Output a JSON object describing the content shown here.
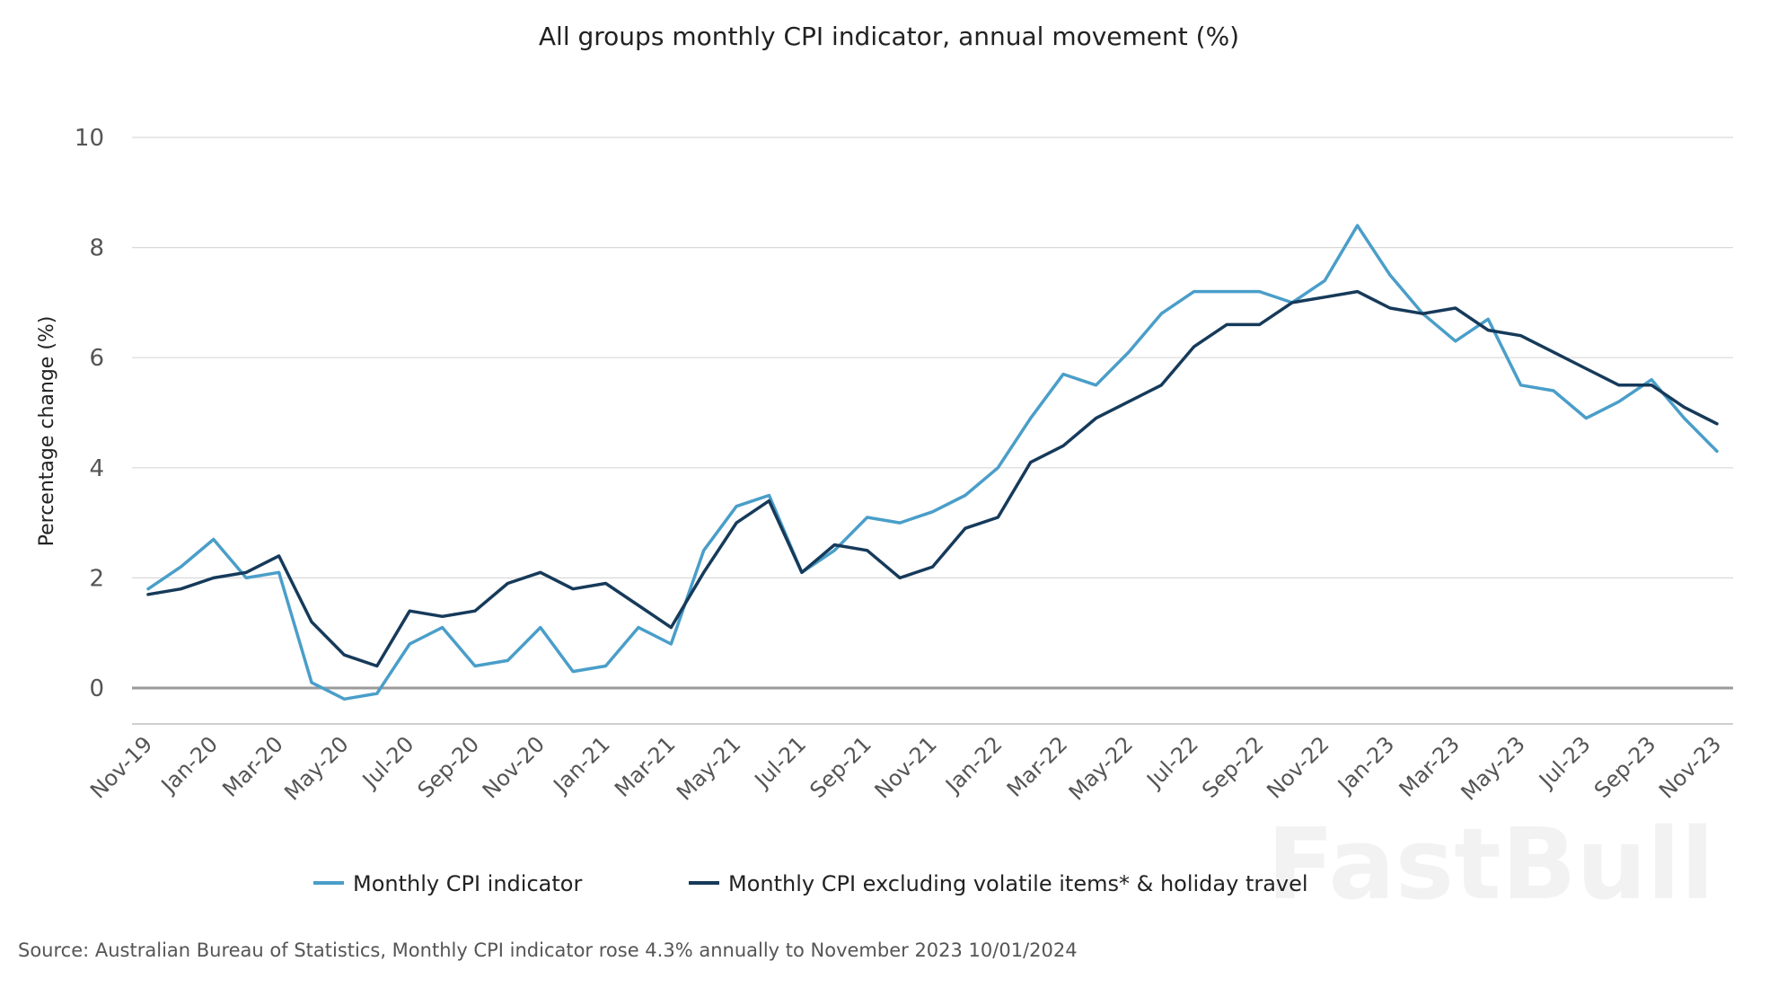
{
  "chart_data": {
    "type": "line",
    "title": "All groups monthly CPI indicator, annual movement (%)",
    "ylabel": "Percentage change (%)",
    "ylim": [
      -0.6,
      10
    ],
    "yticks": [
      0,
      2,
      4,
      6,
      8,
      10
    ],
    "grid": true,
    "legend_position": "bottom",
    "x": [
      "Nov-19",
      "Dec-19",
      "Jan-20",
      "Feb-20",
      "Mar-20",
      "Apr-20",
      "May-20",
      "Jun-20",
      "Jul-20",
      "Aug-20",
      "Sep-20",
      "Oct-20",
      "Nov-20",
      "Dec-20",
      "Jan-21",
      "Feb-21",
      "Mar-21",
      "Apr-21",
      "May-21",
      "Jun-21",
      "Jul-21",
      "Aug-21",
      "Sep-21",
      "Oct-21",
      "Nov-21",
      "Dec-21",
      "Jan-22",
      "Feb-22",
      "Mar-22",
      "Apr-22",
      "May-22",
      "Jun-22",
      "Jul-22",
      "Aug-22",
      "Sep-22",
      "Oct-22",
      "Nov-22",
      "Dec-22",
      "Jan-23",
      "Feb-23",
      "Mar-23",
      "Apr-23",
      "May-23",
      "Jun-23",
      "Jul-23",
      "Aug-23",
      "Sep-23",
      "Oct-23",
      "Nov-23"
    ],
    "xtick_labels": [
      "Nov-19",
      "Jan-20",
      "Mar-20",
      "May-20",
      "Jul-20",
      "Sep-20",
      "Nov-20",
      "Jan-21",
      "Mar-21",
      "May-21",
      "Jul-21",
      "Sep-21",
      "Nov-21",
      "Jan-22",
      "Mar-22",
      "May-22",
      "Jul-22",
      "Sep-22",
      "Nov-22",
      "Jan-23",
      "Mar-23",
      "May-23",
      "Jul-23",
      "Sep-23",
      "Nov-23"
    ],
    "series": [
      {
        "name": "Monthly CPI indicator",
        "color": "#4a9ec9",
        "values": [
          1.8,
          2.2,
          2.7,
          2.0,
          2.1,
          0.1,
          -0.2,
          -0.1,
          0.8,
          1.1,
          0.4,
          0.5,
          1.1,
          0.3,
          0.4,
          1.1,
          0.8,
          2.5,
          3.3,
          3.5,
          2.1,
          2.5,
          3.1,
          3.0,
          3.2,
          3.5,
          4.0,
          4.9,
          5.7,
          5.5,
          6.1,
          6.8,
          7.2,
          7.2,
          7.2,
          7.0,
          7.4,
          8.4,
          7.5,
          6.8,
          6.3,
          6.7,
          5.5,
          5.4,
          4.9,
          5.2,
          5.6,
          4.9,
          4.3
        ]
      },
      {
        "name": "Monthly CPI excluding volatile items* & holiday travel",
        "color": "#163a5a",
        "values": [
          1.7,
          1.8,
          2.0,
          2.1,
          2.4,
          1.2,
          0.6,
          0.4,
          1.4,
          1.3,
          1.4,
          1.9,
          2.1,
          1.8,
          1.9,
          1.5,
          1.1,
          2.1,
          3.0,
          3.4,
          2.1,
          2.6,
          2.5,
          2.0,
          2.2,
          2.9,
          3.1,
          4.1,
          4.4,
          4.9,
          5.2,
          5.5,
          6.2,
          6.6,
          6.6,
          7.0,
          7.1,
          7.2,
          6.9,
          6.8,
          6.9,
          6.5,
          6.4,
          6.1,
          5.8,
          5.5,
          5.5,
          5.1,
          4.8
        ]
      }
    ],
    "source": "Source: Australian Bureau of Statistics, Monthly CPI indicator rose 4.3% annually to November 2023 10/01/2024",
    "watermark": "FastBull",
    "colors": {
      "grid": "#d9d9d9",
      "zero_line": "#9a9a9a",
      "axis": "#bfbfbf"
    }
  }
}
